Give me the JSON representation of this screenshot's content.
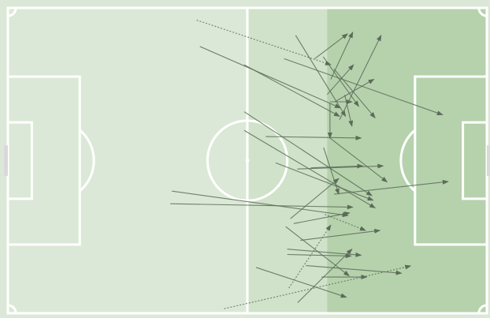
{
  "colors": {
    "pitch_base": "#dce8d7",
    "middle_third": "#d0e2c9",
    "final_third": "#b6d2ad",
    "lines": "#ffffff",
    "goal": "#d9d9d9",
    "pass_line": "#5c6b58"
  },
  "chart_data": {
    "type": "pass-map",
    "title": "",
    "xlabel": "",
    "ylabel": "",
    "pitch": {
      "length": 120,
      "width": 80,
      "attack_direction": "right",
      "zones_shaded": [
        "middle-third",
        "final-third"
      ]
    },
    "passes": [
      {
        "x": 47.3,
        "y": 3.2,
        "end_x": 80.9,
        "end_y": 14.9,
        "outcome": "incomplete"
      },
      {
        "x": 80.9,
        "y": 18.7,
        "end_x": 86.4,
        "end_y": 6.4,
        "outcome": "complete"
      },
      {
        "x": 76.9,
        "y": 13.3,
        "end_x": 85.1,
        "end_y": 6.8,
        "outcome": "complete"
      },
      {
        "x": 72.1,
        "y": 7.2,
        "end_x": 84.6,
        "end_y": 28.4,
        "outcome": "complete"
      },
      {
        "x": 79.0,
        "y": 12.8,
        "end_x": 87.9,
        "end_y": 25.8,
        "outcome": "complete"
      },
      {
        "x": 80.0,
        "y": 22.7,
        "end_x": 86.6,
        "end_y": 14.9,
        "outcome": "complete"
      },
      {
        "x": 83.1,
        "y": 29.3,
        "end_x": 93.5,
        "end_y": 7.2,
        "outcome": "complete"
      },
      {
        "x": 80.7,
        "y": 24.6,
        "end_x": 86.2,
        "end_y": 24.6,
        "outcome": "complete"
      },
      {
        "x": 81.9,
        "y": 24.6,
        "end_x": 91.7,
        "end_y": 18.7,
        "outcome": "complete"
      },
      {
        "x": 59.2,
        "y": 14.9,
        "end_x": 83.1,
        "end_y": 28.4,
        "outcome": "complete"
      },
      {
        "x": 69.2,
        "y": 13.3,
        "end_x": 108.9,
        "end_y": 28.0,
        "outcome": "complete"
      },
      {
        "x": 81.7,
        "y": 16.0,
        "end_x": 92.0,
        "end_y": 28.8,
        "outcome": "complete"
      },
      {
        "x": 48.1,
        "y": 10.1,
        "end_x": 83.3,
        "end_y": 26.2,
        "outcome": "complete"
      },
      {
        "x": 84.4,
        "y": 22.8,
        "end_x": 86.2,
        "end_y": 31.0,
        "outcome": "complete"
      },
      {
        "x": 64.6,
        "y": 33.7,
        "end_x": 88.5,
        "end_y": 34.1,
        "outcome": "complete"
      },
      {
        "x": 80.7,
        "y": 25.0,
        "end_x": 80.7,
        "end_y": 34.1,
        "outcome": "complete"
      },
      {
        "x": 80.7,
        "y": 34.1,
        "end_x": 95.0,
        "end_y": 45.6,
        "outcome": "complete"
      },
      {
        "x": 59.2,
        "y": 27.2,
        "end_x": 91.2,
        "end_y": 49.2,
        "outcome": "complete"
      },
      {
        "x": 59.2,
        "y": 32.1,
        "end_x": 92.0,
        "end_y": 52.4,
        "outcome": "complete"
      },
      {
        "x": 67.1,
        "y": 40.6,
        "end_x": 91.5,
        "end_y": 50.4,
        "outcome": "complete"
      },
      {
        "x": 72.5,
        "y": 42.2,
        "end_x": 94.0,
        "end_y": 41.4,
        "outcome": "complete"
      },
      {
        "x": 75.9,
        "y": 41.9,
        "end_x": 88.9,
        "end_y": 41.4,
        "outcome": "complete"
      },
      {
        "x": 79.1,
        "y": 36.6,
        "end_x": 82.9,
        "end_y": 48.8,
        "outcome": "complete"
      },
      {
        "x": 70.8,
        "y": 55.2,
        "end_x": 82.9,
        "end_y": 44.7,
        "outcome": "complete"
      },
      {
        "x": 81.7,
        "y": 48.8,
        "end_x": 110.3,
        "end_y": 45.5,
        "outcome": "complete"
      },
      {
        "x": 41.1,
        "y": 48.0,
        "end_x": 85.2,
        "end_y": 54.4,
        "outcome": "complete"
      },
      {
        "x": 40.7,
        "y": 51.3,
        "end_x": 86.4,
        "end_y": 52.2,
        "outcome": "complete"
      },
      {
        "x": 71.6,
        "y": 56.5,
        "end_x": 85.6,
        "end_y": 53.7,
        "outcome": "complete"
      },
      {
        "x": 79.4,
        "y": 54.1,
        "end_x": 89.6,
        "end_y": 58.3,
        "outcome": "incomplete"
      },
      {
        "x": 73.3,
        "y": 60.9,
        "end_x": 93.2,
        "end_y": 58.3,
        "outcome": "complete"
      },
      {
        "x": 70.4,
        "y": 73.4,
        "end_x": 80.9,
        "end_y": 56.9,
        "outcome": "incomplete"
      },
      {
        "x": 69.6,
        "y": 57.3,
        "end_x": 85.5,
        "end_y": 70.2,
        "outcome": "complete"
      },
      {
        "x": 70.0,
        "y": 63.2,
        "end_x": 88.5,
        "end_y": 64.8,
        "outcome": "complete"
      },
      {
        "x": 70.0,
        "y": 64.6,
        "end_x": 86.0,
        "end_y": 65.0,
        "outcome": "complete"
      },
      {
        "x": 74.7,
        "y": 67.5,
        "end_x": 98.6,
        "end_y": 69.5,
        "outcome": "complete"
      },
      {
        "x": 78.6,
        "y": 70.5,
        "end_x": 89.9,
        "end_y": 70.5,
        "outcome": "complete"
      },
      {
        "x": 62.2,
        "y": 68.0,
        "end_x": 84.8,
        "end_y": 75.8,
        "outcome": "complete"
      },
      {
        "x": 72.6,
        "y": 77.2,
        "end_x": 86.2,
        "end_y": 63.2,
        "outcome": "complete"
      },
      {
        "x": 54.2,
        "y": 78.8,
        "end_x": 100.9,
        "end_y": 67.6,
        "outcome": "incomplete"
      }
    ]
  }
}
